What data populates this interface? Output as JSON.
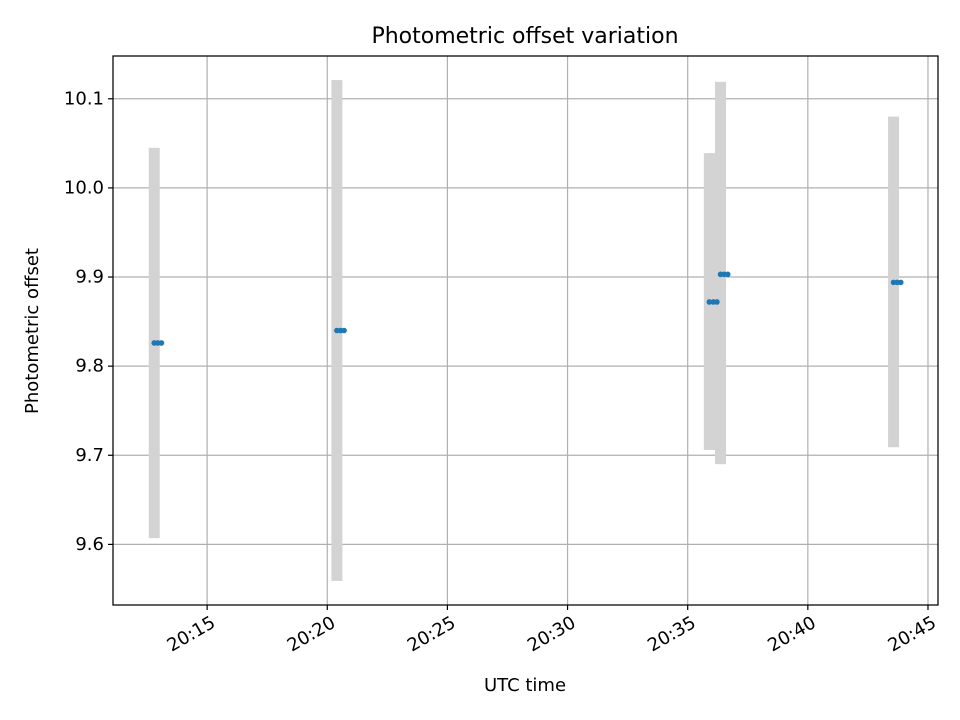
{
  "chart_data": {
    "type": "scatter",
    "title": "Photometric offset variation",
    "xlabel": "UTC time",
    "ylabel": "Photometric offset",
    "x_tick_labels": [
      "20:15",
      "20:20",
      "20:25",
      "20:30",
      "20:35",
      "20:40",
      "20:45"
    ],
    "x_ticks": [
      "20:15",
      "20:20",
      "20:25",
      "20:30",
      "20:35",
      "20:40",
      "20:45"
    ],
    "y_ticks": [
      9.6,
      9.7,
      9.8,
      9.9,
      10.0,
      10.1
    ],
    "y_tick_labels": [
      "9.6",
      "9.7",
      "9.8",
      "9.9",
      "10.0",
      "10.1"
    ],
    "xlim": [
      "20:11:05",
      "20:45:25"
    ],
    "ylim": [
      9.532,
      10.148
    ],
    "grid": true,
    "colors": {
      "marker": "#1f77b4",
      "error_bar": "#d3d3d3",
      "grid": "#b0b0b0"
    },
    "series": [
      {
        "points": [
          {
            "x": "20:12:48",
            "y": 9.826,
            "err_low": 9.607,
            "err_high": 10.045
          },
          {
            "x": "20:12:57",
            "y": 9.826
          },
          {
            "x": "20:13:06",
            "y": 9.826
          },
          {
            "x": "20:20:24",
            "y": 9.84,
            "err_low": 9.559,
            "err_high": 10.121
          },
          {
            "x": "20:20:33",
            "y": 9.84
          },
          {
            "x": "20:20:42",
            "y": 9.84
          },
          {
            "x": "20:35:54",
            "y": 9.872,
            "err_low": 9.706,
            "err_high": 10.039
          },
          {
            "x": "20:36:04",
            "y": 9.872,
            "err_low": 9.706,
            "err_high": 10.039
          },
          {
            "x": "20:36:13",
            "y": 9.872
          },
          {
            "x": "20:36:22",
            "y": 9.903,
            "err_low": 9.69,
            "err_high": 10.119
          },
          {
            "x": "20:36:31",
            "y": 9.903
          },
          {
            "x": "20:36:40",
            "y": 9.903
          },
          {
            "x": "20:43:34",
            "y": 9.894,
            "err_low": 9.709,
            "err_high": 10.08
          },
          {
            "x": "20:43:43",
            "y": 9.894
          },
          {
            "x": "20:43:52",
            "y": 9.894
          }
        ]
      }
    ]
  }
}
